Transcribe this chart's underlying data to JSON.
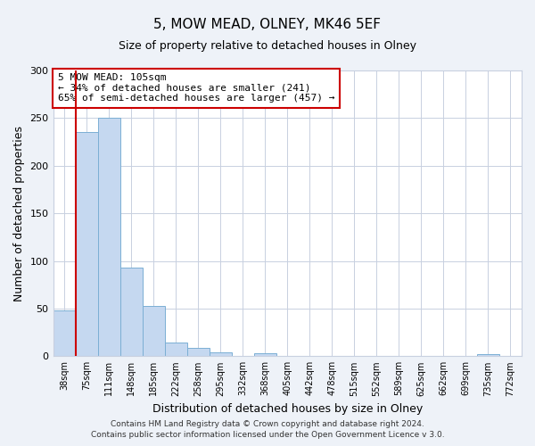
{
  "title": "5, MOW MEAD, OLNEY, MK46 5EF",
  "subtitle": "Size of property relative to detached houses in Olney",
  "xlabel": "Distribution of detached houses by size in Olney",
  "ylabel": "Number of detached properties",
  "bar_labels": [
    "38sqm",
    "75sqm",
    "111sqm",
    "148sqm",
    "185sqm",
    "222sqm",
    "258sqm",
    "295sqm",
    "332sqm",
    "368sqm",
    "405sqm",
    "442sqm",
    "478sqm",
    "515sqm",
    "552sqm",
    "589sqm",
    "625sqm",
    "662sqm",
    "699sqm",
    "735sqm",
    "772sqm"
  ],
  "bar_values": [
    48,
    235,
    250,
    93,
    53,
    14,
    9,
    4,
    0,
    3,
    0,
    0,
    0,
    0,
    0,
    0,
    0,
    0,
    0,
    2,
    0
  ],
  "bar_color": "#c5d8f0",
  "bar_edgecolor": "#7bafd4",
  "property_line_x": 1,
  "property_line_color": "#cc0000",
  "ylim": [
    0,
    300
  ],
  "yticks": [
    0,
    50,
    100,
    150,
    200,
    250,
    300
  ],
  "annotation_title": "5 MOW MEAD: 105sqm",
  "annotation_line1": "← 34% of detached houses are smaller (241)",
  "annotation_line2": "65% of semi-detached houses are larger (457) →",
  "annotation_box_color": "#ffffff",
  "annotation_box_edgecolor": "#cc0000",
  "footer1": "Contains HM Land Registry data © Crown copyright and database right 2024.",
  "footer2": "Contains public sector information licensed under the Open Government Licence v 3.0.",
  "background_color": "#eef2f8",
  "plot_background_color": "#ffffff",
  "grid_color": "#c8d0e0"
}
